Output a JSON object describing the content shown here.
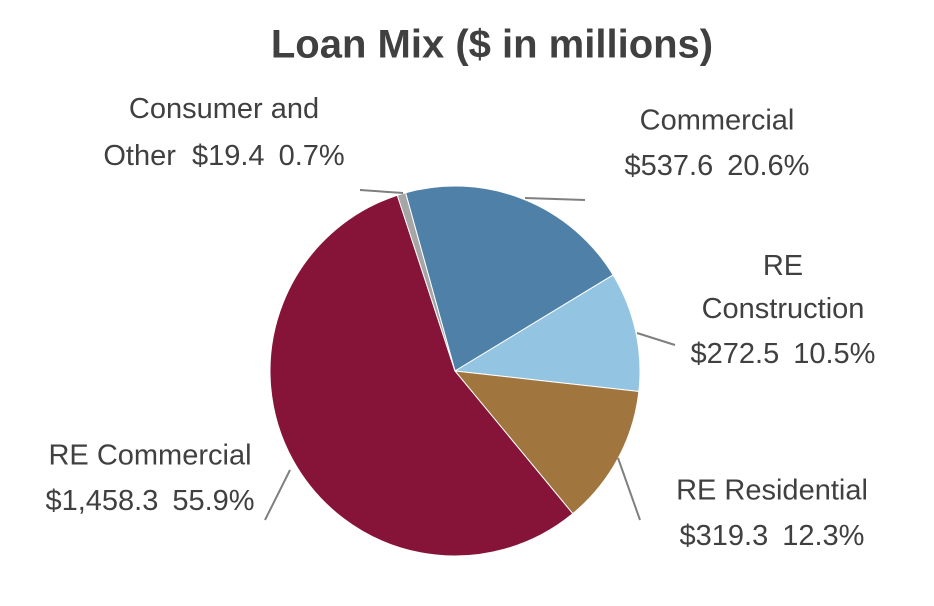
{
  "chart_data": {
    "type": "pie",
    "title": "Loan Mix ($ in millions)",
    "categories": [
      "Commercial",
      "RE Construction",
      "RE Residential",
      "RE Commercial",
      "Consumer and Other"
    ],
    "values": [
      537.6,
      272.5,
      319.3,
      1458.3,
      19.4
    ],
    "value_labels": [
      "$537.6",
      "$272.5",
      "$319.3",
      "$1,458.3",
      "$19.4"
    ],
    "percent_labels": [
      "20.6%",
      "10.5%",
      "12.3%",
      "55.9%",
      "0.7%"
    ],
    "colors": [
      "#4f81a8",
      "#93c4e2",
      "#a0763e",
      "#861438",
      "#a6a6a6"
    ]
  }
}
